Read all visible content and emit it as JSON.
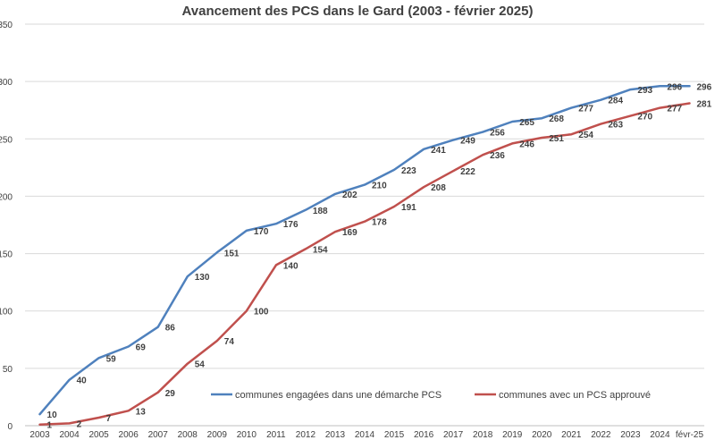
{
  "chart_data": {
    "type": "line",
    "title": "Avancement des PCS dans le Gard (2003 - février 2025)",
    "xlabel": "",
    "ylabel": "",
    "ylim": [
      0,
      350
    ],
    "yticks": [
      0,
      50,
      100,
      150,
      200,
      250,
      300,
      350
    ],
    "grid": true,
    "legend_position": "bottom-center",
    "categories": [
      "2003",
      "2004",
      "2005",
      "2006",
      "2007",
      "2008",
      "2009",
      "2010",
      "2011",
      "2012",
      "2013",
      "2014",
      "2015",
      "2016",
      "2017",
      "2018",
      "2019",
      "2020",
      "2021",
      "2022",
      "2023",
      "2024",
      "févr-25"
    ],
    "series": [
      {
        "name": "communes engagées dans une démarche PCS",
        "color": "#4f81bd",
        "values": [
          10,
          40,
          59,
          69,
          86,
          130,
          151,
          170,
          176,
          188,
          202,
          210,
          223,
          241,
          249,
          256,
          265,
          268,
          277,
          284,
          293,
          296,
          296
        ]
      },
      {
        "name": "communes avec un PCS approuvé",
        "color": "#c0504d",
        "values": [
          1,
          2,
          7,
          13,
          29,
          54,
          74,
          100,
          140,
          154,
          169,
          178,
          191,
          208,
          222,
          236,
          246,
          251,
          254,
          263,
          270,
          277,
          281
        ]
      }
    ]
  }
}
